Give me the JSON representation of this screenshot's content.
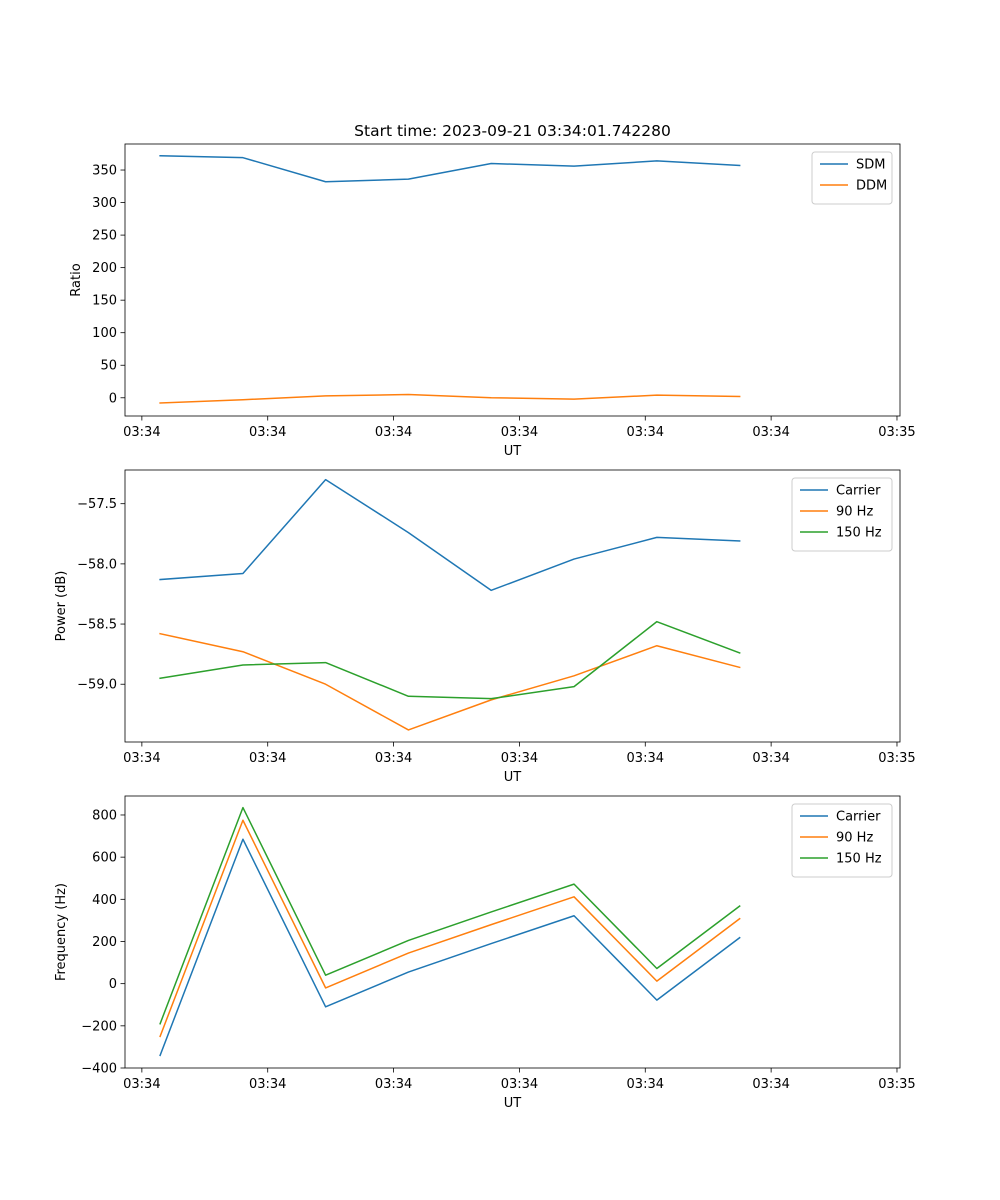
{
  "chart_data": [
    {
      "type": "line",
      "title": "Start time: 2023-09-21 03:34:01.742280",
      "xlabel": "UT",
      "ylabel": "Ratio",
      "x": [
        0.745,
        1.403,
        2.06,
        2.718,
        3.376,
        4.034,
        4.692,
        5.35
      ],
      "x_tick_values": [
        0.6,
        1.6,
        2.6,
        3.6,
        4.6,
        5.6,
        6.6
      ],
      "x_tick_labels": [
        "03:34",
        "03:34",
        "03:34",
        "03:34",
        "03:34",
        "03:34",
        "03:35"
      ],
      "xlim": [
        0.466,
        6.624
      ],
      "y_ticks": [
        0,
        50,
        100,
        150,
        200,
        250,
        300,
        350
      ],
      "ylim": [
        -28,
        390
      ],
      "legend_position": "upper-right",
      "series": [
        {
          "name": "SDM",
          "color": "#1f77b4",
          "values": [
            372,
            369,
            332,
            336,
            360,
            356,
            364,
            357
          ]
        },
        {
          "name": "DDM",
          "color": "#ff7f0e",
          "values": [
            -8,
            -3,
            3,
            5,
            0,
            -2,
            4,
            2
          ]
        }
      ]
    },
    {
      "type": "line",
      "title": "",
      "xlabel": "UT",
      "ylabel": "Power (dB)",
      "x": [
        0.745,
        1.403,
        2.06,
        2.718,
        3.376,
        4.034,
        4.692,
        5.35
      ],
      "x_tick_values": [
        0.6,
        1.6,
        2.6,
        3.6,
        4.6,
        5.6,
        6.6
      ],
      "x_tick_labels": [
        "03:34",
        "03:34",
        "03:34",
        "03:34",
        "03:34",
        "03:34",
        "03:35"
      ],
      "xlim": [
        0.466,
        6.624
      ],
      "y_ticks": [
        -59.0,
        -58.5,
        -58.0,
        -57.5
      ],
      "y_tick_labels": [
        "−59.0",
        "−58.5",
        "−58.0",
        "−57.5"
      ],
      "ylim": [
        -59.48,
        -57.22
      ],
      "legend_position": "upper-right",
      "series": [
        {
          "name": "Carrier",
          "color": "#1f77b4",
          "values": [
            -58.13,
            -58.08,
            -57.3,
            -57.74,
            -58.22,
            -57.96,
            -57.78,
            -57.81
          ]
        },
        {
          "name": "90 Hz",
          "color": "#ff7f0e",
          "values": [
            -58.58,
            -58.73,
            -59.0,
            -59.38,
            -59.13,
            -58.93,
            -58.68,
            -58.86
          ]
        },
        {
          "name": "150 Hz",
          "color": "#2ca02c",
          "values": [
            -58.95,
            -58.84,
            -58.82,
            -59.1,
            -59.12,
            -59.02,
            -58.48,
            -58.74
          ]
        }
      ]
    },
    {
      "type": "line",
      "title": "",
      "xlabel": "UT",
      "ylabel": "Frequency (Hz)",
      "x": [
        0.745,
        1.403,
        2.06,
        2.718,
        3.376,
        4.034,
        4.692,
        5.35
      ],
      "x_tick_values": [
        0.6,
        1.6,
        2.6,
        3.6,
        4.6,
        5.6,
        6.6
      ],
      "x_tick_labels": [
        "03:34",
        "03:34",
        "03:34",
        "03:34",
        "03:34",
        "03:34",
        "03:35"
      ],
      "xlim": [
        0.466,
        6.624
      ],
      "y_ticks": [
        -400,
        -200,
        0,
        200,
        400,
        600,
        800
      ],
      "y_tick_labels": [
        "−400",
        "−200",
        "0",
        "200",
        "400",
        "600",
        "800"
      ],
      "ylim": [
        -400,
        890
      ],
      "legend_position": "upper-right",
      "series": [
        {
          "name": "Carrier",
          "color": "#1f77b4",
          "values": [
            -340,
            685,
            -110,
            55,
            190,
            322,
            -78,
            218
          ]
        },
        {
          "name": "90 Hz",
          "color": "#ff7f0e",
          "values": [
            -250,
            775,
            -20,
            145,
            280,
            412,
            12,
            308
          ]
        },
        {
          "name": "150 Hz",
          "color": "#2ca02c",
          "values": [
            -190,
            835,
            40,
            205,
            340,
            472,
            72,
            368
          ]
        }
      ]
    }
  ]
}
